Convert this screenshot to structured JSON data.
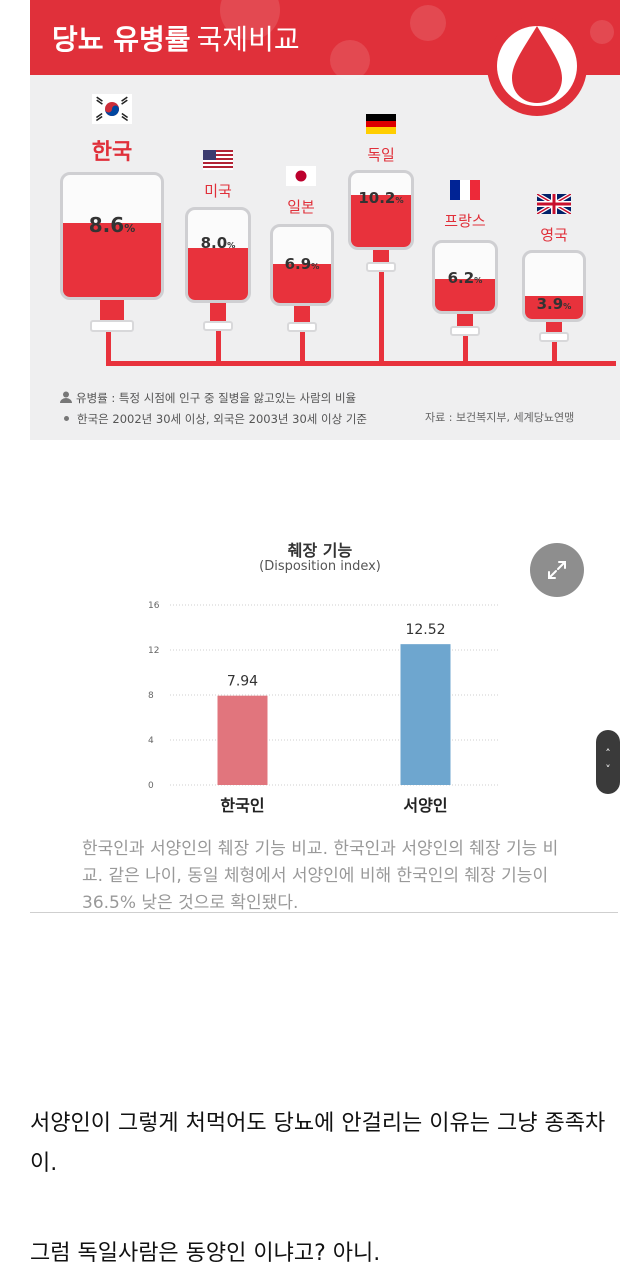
{
  "infographic": {
    "title": "당뇨 유병률",
    "subtitle": "국제비교",
    "brand_color": "#e0303a",
    "countries": [
      {
        "name": "한국",
        "value": 8.6,
        "label": "8.6",
        "unit": "%",
        "flag": "korea-flag-icon"
      },
      {
        "name": "미국",
        "value": 8.0,
        "label": "8.0",
        "unit": "%",
        "flag": "usa-flag-icon"
      },
      {
        "name": "일본",
        "value": 6.9,
        "label": "6.9",
        "unit": "%",
        "flag": "japan-flag-icon"
      },
      {
        "name": "독일",
        "value": 10.2,
        "label": "10.2",
        "unit": "%",
        "flag": "germany-flag-icon"
      },
      {
        "name": "프랑스",
        "value": 6.2,
        "label": "6.2",
        "unit": "%",
        "flag": "france-flag-icon"
      },
      {
        "name": "영국",
        "value": 3.9,
        "label": "3.9",
        "unit": "%",
        "flag": "uk-flag-icon"
      }
    ],
    "note_definition": "유병률 : 특정 시점에 인구 중 질병을 앓고있는 사람의 비율",
    "note_basis": "한국은 2002년 30세 이상, 외국은 2003년 30세 이상 기준",
    "source": "자료 : 보건복지부, 세계당뇨연맹"
  },
  "chart_data": {
    "type": "bar",
    "title": "췌장 기능",
    "subtitle": "(Disposition index)",
    "categories": [
      "한국인",
      "서양인"
    ],
    "values": [
      7.94,
      12.52
    ],
    "value_labels": [
      "7.94",
      "12.52"
    ],
    "colors": [
      "#e1757d",
      "#6ea6cf"
    ],
    "ylim": [
      0,
      16
    ],
    "yticks": [
      "0",
      "4",
      "8",
      "12",
      "16"
    ],
    "grid": true
  },
  "caption": "한국인과 서양인의 췌장 기능 비교. 한국인과 서양인의 췌장 기능 비교. 같은 나이, 동일 체형에서 서양인에 비해 한국인의 췌장 기능이 36.5% 낮은 것으로 확인됐다.",
  "body_text": {
    "para1": "서양인이 그렇게 처먹어도 당뇨에 안걸리는 이유는 그냥 종족차이.",
    "para2": "그럼 독일사람은 동양인 이냐고? 아니."
  },
  "controls": {
    "expand_icon": "expand-icon",
    "scroll_up": "˄",
    "scroll_down": "˅"
  }
}
